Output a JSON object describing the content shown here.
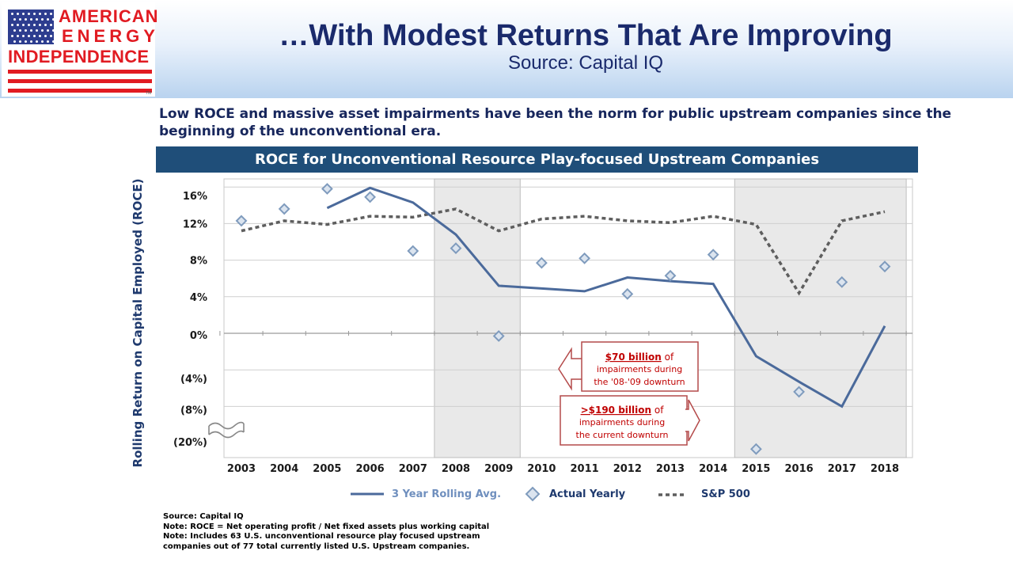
{
  "logo": {
    "line1": "AMERICAN",
    "line2": "ENERGY",
    "line3": "INDEPENDENCE",
    "tm": "TM",
    "icon": "us-flag-icon"
  },
  "header": {
    "title": "…With Modest Returns That Are Improving",
    "subtitle": "Source: Capital IQ"
  },
  "intro": "Low ROCE and massive asset impairments have been the norm for public upstream companies since the beginning of the unconventional era.",
  "colors": {
    "banner": "#1f4e79",
    "series_line": "#4b6a9b",
    "diamond": "#7f9bbd",
    "sp500": "#5e5e5e",
    "callout": "#c00000",
    "shade": "#e9e9e9"
  },
  "chart_data": {
    "type": "line",
    "title": "ROCE for Unconventional Resource Play-focused Upstream Companies",
    "ylabel": "Rolling Return on Capital Employed (ROCE)",
    "xlabel": "",
    "categories": [
      "2003",
      "2004",
      "2005",
      "2006",
      "2007",
      "2008",
      "2009",
      "2010",
      "2011",
      "2012",
      "2013",
      "2014",
      "2015",
      "2016",
      "2017",
      "2018"
    ],
    "y_tick_labels": [
      "16%",
      "12%",
      "8%",
      "4%",
      "0%",
      "(4%)",
      "(8%)",
      "(20%)"
    ],
    "ylim": [
      -20,
      17
    ],
    "axis_break": "between (8%) and (20%)",
    "shaded_periods": [
      [
        "2008",
        "2009"
      ],
      [
        "2015",
        "2018"
      ]
    ],
    "series": [
      {
        "name": "3 Year Rolling Avg.",
        "style": "solid",
        "values": [
          null,
          null,
          13.7,
          15.9,
          14.3,
          10.8,
          5.2,
          4.9,
          4.6,
          6.1,
          5.7,
          5.4,
          -2.5,
          -5.3,
          -8.0,
          0.8
        ]
      },
      {
        "name": "Actual Yearly",
        "style": "diamond",
        "values": [
          12.3,
          13.6,
          15.8,
          14.9,
          9.0,
          9.3,
          -0.3,
          7.7,
          8.2,
          4.3,
          6.3,
          8.6,
          -20.0,
          -6.4,
          5.6,
          7.3
        ]
      },
      {
        "name": "S&P 500",
        "style": "dashed",
        "values": [
          11.2,
          12.3,
          11.9,
          12.8,
          12.7,
          13.6,
          11.2,
          12.5,
          12.8,
          12.3,
          12.1,
          12.8,
          11.9,
          4.4,
          12.3,
          13.3
        ]
      }
    ],
    "annotations": [
      {
        "highlight": "$70 billion",
        "rest1": " of",
        "rest2": "impairments during",
        "rest3": "the '08-'09 downturn"
      },
      {
        "highlight": ">$190 billion",
        "rest1": " of",
        "rest2": "impairments during",
        "rest3": "the current downturn"
      }
    ]
  },
  "notes": [
    "Source: Capital IQ",
    "Note: ROCE = Net operating profit / Net fixed assets plus working capital",
    "Note: Includes 63 U.S. unconventional resource play focused upstream",
    "companies out of 77 total currently listed U.S.  Upstream companies."
  ]
}
